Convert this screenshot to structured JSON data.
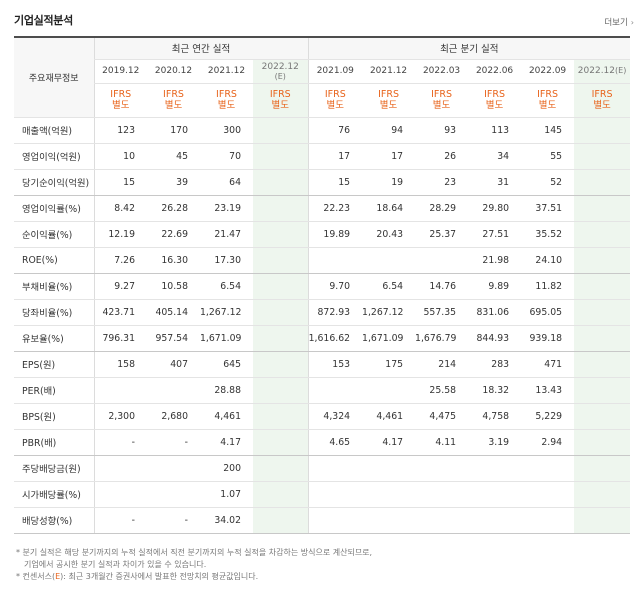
{
  "header": {
    "title": "기업실적분석",
    "more_label": "더보기",
    "more_icon": "chevron-right-icon"
  },
  "table": {
    "row_header_label": "주요재무정보",
    "group_annual_label": "최근 연간 실적",
    "group_quarter_label": "최근 분기 실적",
    "estimate_marker": "(E)",
    "annual_periods": [
      "2019.12",
      "2020.12",
      "2021.12",
      "2022.12"
    ],
    "quarter_periods": [
      "2021.09",
      "2021.12",
      "2022.03",
      "2022.06",
      "2022.09",
      "2022.12"
    ],
    "standard_label_line1": "IFRS",
    "standard_label_line2": "별도",
    "rows": [
      {
        "label": "매출액(억원)",
        "values": [
          "123",
          "170",
          "300",
          "",
          "76",
          "94",
          "93",
          "113",
          "145",
          ""
        ]
      },
      {
        "label": "영업이익(억원)",
        "values": [
          "10",
          "45",
          "70",
          "",
          "17",
          "17",
          "26",
          "34",
          "55",
          ""
        ]
      },
      {
        "label": "당기순이익(억원)",
        "values": [
          "15",
          "39",
          "64",
          "",
          "15",
          "19",
          "23",
          "31",
          "52",
          ""
        ]
      },
      {
        "label": "영업이익률(%)",
        "values": [
          "8.42",
          "26.28",
          "23.19",
          "",
          "22.23",
          "18.64",
          "28.29",
          "29.80",
          "37.51",
          ""
        ]
      },
      {
        "label": "순이익률(%)",
        "values": [
          "12.19",
          "22.69",
          "21.47",
          "",
          "19.89",
          "20.43",
          "25.37",
          "27.51",
          "35.52",
          ""
        ]
      },
      {
        "label": "ROE(%)",
        "values": [
          "7.26",
          "16.30",
          "17.30",
          "",
          "",
          "",
          "",
          "21.98",
          "24.10",
          ""
        ]
      },
      {
        "label": "부채비율(%)",
        "values": [
          "9.27",
          "10.58",
          "6.54",
          "",
          "9.70",
          "6.54",
          "14.76",
          "9.89",
          "11.82",
          ""
        ]
      },
      {
        "label": "당좌비율(%)",
        "values": [
          "423.71",
          "405.14",
          "1,267.12",
          "",
          "872.93",
          "1,267.12",
          "557.35",
          "831.06",
          "695.05",
          ""
        ]
      },
      {
        "label": "유보율(%)",
        "values": [
          "796.31",
          "957.54",
          "1,671.09",
          "",
          "1,616.62",
          "1,671.09",
          "1,676.79",
          "844.93",
          "939.18",
          ""
        ]
      },
      {
        "label": "EPS(원)",
        "values": [
          "158",
          "407",
          "645",
          "",
          "153",
          "175",
          "214",
          "283",
          "471",
          ""
        ]
      },
      {
        "label": "PER(배)",
        "values": [
          "",
          "",
          "28.88",
          "",
          "",
          "",
          "25.58",
          "18.32",
          "13.43",
          ""
        ]
      },
      {
        "label": "BPS(원)",
        "values": [
          "2,300",
          "2,680",
          "4,461",
          "",
          "4,324",
          "4,461",
          "4,475",
          "4,758",
          "5,229",
          ""
        ]
      },
      {
        "label": "PBR(배)",
        "values": [
          "-",
          "-",
          "4.17",
          "",
          "4.65",
          "4.17",
          "4.11",
          "3.19",
          "2.94",
          ""
        ]
      },
      {
        "label": "주당배당금(원)",
        "values": [
          "",
          "",
          "200",
          "",
          "",
          "",
          "",
          "",
          "",
          ""
        ]
      },
      {
        "label": "시가배당률(%)",
        "values": [
          "",
          "",
          "1.07",
          "",
          "",
          "",
          "",
          "",
          "",
          ""
        ]
      },
      {
        "label": "배당성향(%)",
        "values": [
          "-",
          "-",
          "34.02",
          "",
          "",
          "",
          "",
          "",
          "",
          ""
        ]
      }
    ]
  },
  "notes": {
    "line1": "* 분기 실적은 해당 분기까지의 누적 실적에서 직전 분기까지의 누적 실적을 차감하는 방식으로 계산되므로,",
    "line2": "기업에서 공시한 분기 실적과 차이가 있을 수 있습니다.",
    "line3_prefix": "* 컨센서스(",
    "line3_marker": "E",
    "line3_suffix": "): 최근 3개월간 증권사에서 발표한 전망치의 평균값입니다."
  },
  "colors": {
    "accent_orange": "#e8641c",
    "estimate_bg": "#eef6ee",
    "header_bg": "#f7f7f7"
  }
}
